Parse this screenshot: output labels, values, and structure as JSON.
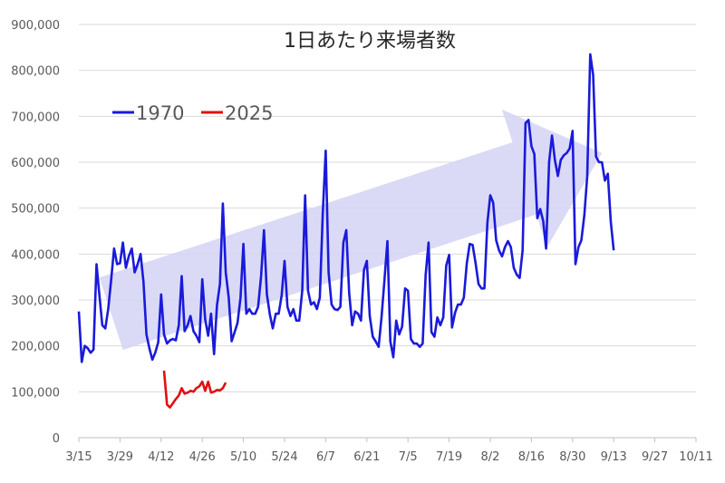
{
  "chart_data": {
    "type": "line",
    "title": "1日あたり来場者数",
    "xlabel": "",
    "ylabel": "",
    "ylim": [
      0,
      900000
    ],
    "yticks": [
      0,
      100000,
      200000,
      300000,
      400000,
      500000,
      600000,
      700000,
      800000,
      900000
    ],
    "ytick_labels": [
      "0",
      "100,000",
      "200,000",
      "300,000",
      "400,000",
      "500,000",
      "600,000",
      "700,000",
      "800,000",
      "900,000"
    ],
    "xlim": [
      "1970-03-15",
      "1970-10-11"
    ],
    "xtick_dates": [
      "1970-03-15",
      "1970-03-29",
      "1970-04-12",
      "1970-04-26",
      "1970-05-10",
      "1970-05-24",
      "1970-06-07",
      "1970-06-21",
      "1970-07-05",
      "1970-07-19",
      "1970-08-02",
      "1970-08-16",
      "1970-08-30",
      "1970-09-13",
      "1970-09-27",
      "1970-10-11"
    ],
    "xtick_labels": [
      "3/15",
      "3/29",
      "4/12",
      "4/26",
      "5/10",
      "5/24",
      "6/7",
      "6/21",
      "7/5",
      "7/19",
      "8/2",
      "8/16",
      "8/30",
      "9/13",
      "9/27",
      "10/11"
    ],
    "grid": "horizontal",
    "legend": "top-left",
    "series": [
      {
        "name": "1970",
        "color": "#1a1adb",
        "x": [
          "1970-03-15",
          "1970-03-16",
          "1970-03-17",
          "1970-03-18",
          "1970-03-19",
          "1970-03-20",
          "1970-03-21",
          "1970-03-22",
          "1970-03-23",
          "1970-03-24",
          "1970-03-25",
          "1970-03-26",
          "1970-03-27",
          "1970-03-28",
          "1970-03-29",
          "1970-03-30",
          "1970-03-31",
          "1970-04-01",
          "1970-04-02",
          "1970-04-03",
          "1970-04-04",
          "1970-04-05",
          "1970-04-06",
          "1970-04-07",
          "1970-04-08",
          "1970-04-09",
          "1970-04-10",
          "1970-04-11",
          "1970-04-12",
          "1970-04-13",
          "1970-04-14",
          "1970-04-15",
          "1970-04-16",
          "1970-04-17",
          "1970-04-18",
          "1970-04-19",
          "1970-04-20",
          "1970-04-21",
          "1970-04-22",
          "1970-04-23",
          "1970-04-24",
          "1970-04-25",
          "1970-04-26",
          "1970-04-27",
          "1970-04-28",
          "1970-04-29",
          "1970-04-30",
          "1970-05-01",
          "1970-05-02",
          "1970-05-03",
          "1970-05-04",
          "1970-05-05",
          "1970-05-06",
          "1970-05-07",
          "1970-05-08",
          "1970-05-09",
          "1970-05-10",
          "1970-05-11",
          "1970-05-12",
          "1970-05-13",
          "1970-05-14",
          "1970-05-15",
          "1970-05-16",
          "1970-05-17",
          "1970-05-18",
          "1970-05-19",
          "1970-05-20",
          "1970-05-21",
          "1970-05-22",
          "1970-05-23",
          "1970-05-24",
          "1970-05-25",
          "1970-05-26",
          "1970-05-27",
          "1970-05-28",
          "1970-05-29",
          "1970-05-30",
          "1970-05-31",
          "1970-06-01",
          "1970-06-02",
          "1970-06-03",
          "1970-06-04",
          "1970-06-05",
          "1970-06-06",
          "1970-06-07",
          "1970-06-08",
          "1970-06-09",
          "1970-06-10",
          "1970-06-11",
          "1970-06-12",
          "1970-06-13",
          "1970-06-14",
          "1970-06-15",
          "1970-06-16",
          "1970-06-17",
          "1970-06-18",
          "1970-06-19",
          "1970-06-20",
          "1970-06-21",
          "1970-06-22",
          "1970-06-23",
          "1970-06-24",
          "1970-06-25",
          "1970-06-26",
          "1970-06-27",
          "1970-06-28",
          "1970-06-29",
          "1970-06-30",
          "1970-07-01",
          "1970-07-02",
          "1970-07-03",
          "1970-07-04",
          "1970-07-05",
          "1970-07-06",
          "1970-07-07",
          "1970-07-08",
          "1970-07-09",
          "1970-07-10",
          "1970-07-11",
          "1970-07-12",
          "1970-07-13",
          "1970-07-14",
          "1970-07-15",
          "1970-07-16",
          "1970-07-17",
          "1970-07-18",
          "1970-07-19",
          "1970-07-20",
          "1970-07-21",
          "1970-07-22",
          "1970-07-23",
          "1970-07-24",
          "1970-07-25",
          "1970-07-26",
          "1970-07-27",
          "1970-07-28",
          "1970-07-29",
          "1970-07-30",
          "1970-07-31",
          "1970-08-01",
          "1970-08-02",
          "1970-08-03",
          "1970-08-04",
          "1970-08-05",
          "1970-08-06",
          "1970-08-07",
          "1970-08-08",
          "1970-08-09",
          "1970-08-10",
          "1970-08-11",
          "1970-08-12",
          "1970-08-13",
          "1970-08-14",
          "1970-08-15",
          "1970-08-16",
          "1970-08-17",
          "1970-08-18",
          "1970-08-19",
          "1970-08-20",
          "1970-08-21",
          "1970-08-22",
          "1970-08-23",
          "1970-08-24",
          "1970-08-25",
          "1970-08-26",
          "1970-08-27",
          "1970-08-28",
          "1970-08-29",
          "1970-08-30",
          "1970-08-31",
          "1970-09-01",
          "1970-09-02",
          "1970-09-03",
          "1970-09-04",
          "1970-09-05",
          "1970-09-06",
          "1970-09-07",
          "1970-09-08",
          "1970-09-09",
          "1970-09-10",
          "1970-09-11",
          "1970-09-12",
          "1970-09-13"
        ],
        "values": [
          275000,
          165000,
          200000,
          195000,
          185000,
          192000,
          378000,
          310000,
          245000,
          238000,
          280000,
          345000,
          412000,
          378000,
          380000,
          425000,
          370000,
          395000,
          412000,
          360000,
          378000,
          400000,
          340000,
          225000,
          195000,
          170000,
          185000,
          208000,
          312000,
          225000,
          205000,
          212000,
          215000,
          212000,
          245000,
          352000,
          232000,
          245000,
          265000,
          232000,
          222000,
          208000,
          345000,
          258000,
          222000,
          270000,
          182000,
          288000,
          335000,
          510000,
          360000,
          305000,
          210000,
          230000,
          250000,
          305000,
          422000,
          270000,
          280000,
          270000,
          270000,
          285000,
          352000,
          452000,
          312000,
          268000,
          238000,
          270000,
          270000,
          310000,
          385000,
          285000,
          265000,
          280000,
          255000,
          255000,
          320000,
          528000,
          320000,
          290000,
          295000,
          280000,
          305000,
          490000,
          625000,
          360000,
          290000,
          280000,
          278000,
          285000,
          425000,
          452000,
          315000,
          245000,
          275000,
          270000,
          255000,
          365000,
          385000,
          265000,
          220000,
          210000,
          198000,
          262000,
          345000,
          428000,
          210000,
          175000,
          255000,
          225000,
          242000,
          325000,
          320000,
          215000,
          205000,
          205000,
          198000,
          205000,
          355000,
          425000,
          230000,
          220000,
          262000,
          245000,
          262000,
          375000,
          398000,
          240000,
          272000,
          290000,
          290000,
          305000,
          380000,
          422000,
          420000,
          380000,
          335000,
          325000,
          325000,
          468000,
          528000,
          512000,
          430000,
          408000,
          395000,
          415000,
          428000,
          415000,
          370000,
          355000,
          348000,
          408000,
          685000,
          692000,
          635000,
          618000,
          478000,
          498000,
          472000,
          412000,
          600000,
          658000,
          605000,
          570000,
          605000,
          615000,
          620000,
          630000,
          668000,
          378000,
          415000,
          430000,
          485000,
          570000,
          835000,
          790000,
          612000,
          600000,
          600000,
          560000,
          575000,
          470000,
          408000
        ]
      },
      {
        "name": "2025",
        "color": "#e01010",
        "x": [
          "2025-04-13",
          "2025-04-14",
          "2025-04-15",
          "2025-04-16",
          "2025-04-17",
          "2025-04-18",
          "2025-04-19",
          "2025-04-20",
          "2025-04-21",
          "2025-04-22",
          "2025-04-23",
          "2025-04-24",
          "2025-04-25",
          "2025-04-26",
          "2025-04-27",
          "2025-04-28",
          "2025-04-29",
          "2025-04-30",
          "2025-05-01",
          "2025-05-02",
          "2025-05-03",
          "2025-05-04"
        ],
        "values": [
          146000,
          72000,
          66000,
          75000,
          84000,
          92000,
          108000,
          96000,
          98000,
          102000,
          100000,
          108000,
          112000,
          122000,
          102000,
          122000,
          98000,
          100000,
          104000,
          103000,
          108000,
          120000
        ]
      }
    ],
    "annotations": [
      {
        "type": "arrow",
        "meaning": "upward trend",
        "color": "#d4d4f6",
        "from": [
          "1970-03-26",
          270000
        ],
        "to": [
          "1970-09-09",
          620000
        ]
      }
    ]
  }
}
